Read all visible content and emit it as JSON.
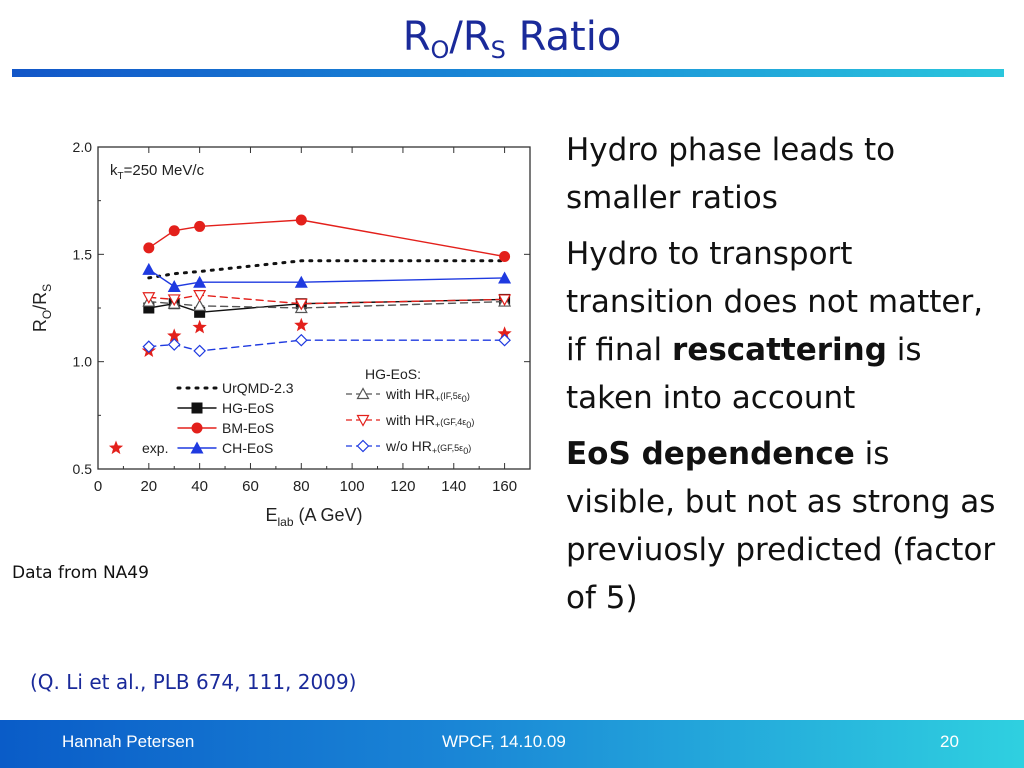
{
  "slide": {
    "title_main": "R",
    "title_sub1": "O",
    "title_slash": "/R",
    "title_sub2": "S",
    "title_tail": " Ratio",
    "bullets": [
      {
        "parts": [
          {
            "text": "Hydro phase leads to smaller ratios",
            "bold": false
          }
        ]
      },
      {
        "parts": [
          {
            "text": "Hydro to transport transition does not matter, if final ",
            "bold": false
          },
          {
            "text": "rescattering",
            "bold": true
          },
          {
            "text": " is taken into account",
            "bold": false
          }
        ]
      },
      {
        "parts": [
          {
            "text": "EoS dependence",
            "bold": true
          },
          {
            "text": " is visible, but not as strong as previuosly predicted (factor of 5)",
            "bold": false
          }
        ]
      }
    ],
    "note": "Data from NA49",
    "reference": "(Q. Li et al., PLB 674, 111, 2009)"
  },
  "footer": {
    "author": "Hannah Petersen",
    "event": "WPCF, 14.10.09",
    "page": "20"
  },
  "chart_data": {
    "type": "line",
    "xlabel": "E",
    "xlabel_sub": "lab",
    "xlabel_tail": " (A GeV)",
    "ylabel": "R",
    "ylabel_sub1": "O",
    "ylabel_mid": "/R",
    "ylabel_sub2": "S",
    "annotation": "k",
    "annotation_sub": "T",
    "annotation_tail": "=250 MeV/c",
    "xlim": [
      0,
      170
    ],
    "ylim": [
      0.5,
      2.0
    ],
    "xticks": [
      "0",
      "20",
      "40",
      "60",
      "80",
      "100",
      "120",
      "140",
      "160"
    ],
    "yticks": [
      "0.5",
      "1.0",
      "1.5",
      "2.0"
    ],
    "legend_heading": "HG-EoS:",
    "series": [
      {
        "name": "UrQMD-2.3",
        "color": "#111111",
        "dash": "dot",
        "marker": "none",
        "x": [
          20,
          30,
          40,
          80,
          160
        ],
        "y": [
          1.39,
          1.41,
          1.42,
          1.47,
          1.47
        ]
      },
      {
        "name": "HG-EoS",
        "color": "#111111",
        "dash": "solid",
        "marker": "square",
        "x": [
          20,
          30,
          40,
          80,
          160
        ],
        "y": [
          1.25,
          1.27,
          1.23,
          1.27,
          1.29
        ]
      },
      {
        "name": "BM-EoS",
        "color": "#e3201b",
        "dash": "solid",
        "marker": "circle",
        "x": [
          20,
          30,
          40,
          80,
          160
        ],
        "y": [
          1.53,
          1.61,
          1.63,
          1.66,
          1.49
        ]
      },
      {
        "name": "CH-EoS",
        "color": "#1f3ae0",
        "dash": "solid",
        "marker": "triangle-up",
        "x": [
          20,
          30,
          40,
          80,
          160
        ],
        "y": [
          1.43,
          1.35,
          1.37,
          1.37,
          1.39
        ]
      },
      {
        "name": "exp.",
        "color": "#e3201b",
        "dash": "none",
        "marker": "star",
        "x": [
          20,
          30,
          40,
          80,
          160
        ],
        "y": [
          1.05,
          1.12,
          1.16,
          1.17,
          1.13
        ]
      },
      {
        "name": "with HR",
        "name_sub": "+",
        "name_tail": "(IF,5ε",
        "name_sub2": "0",
        "name_end": ")",
        "color": "#555555",
        "dash": "dash",
        "marker": "triangle-up-open",
        "x": [
          20,
          30,
          40,
          80,
          160
        ],
        "y": [
          1.28,
          1.27,
          1.26,
          1.25,
          1.28
        ]
      },
      {
        "name": "with HR",
        "name_sub": "+",
        "name_tail": "(GF,4ε",
        "name_sub2": "0",
        "name_end": ")",
        "color": "#e3201b",
        "dash": "dash",
        "marker": "triangle-down-open",
        "x": [
          20,
          30,
          40,
          80,
          160
        ],
        "y": [
          1.3,
          1.29,
          1.31,
          1.27,
          1.29
        ]
      },
      {
        "name": "w/o HR",
        "name_sub": "+",
        "name_tail": "(GF,5ε",
        "name_sub2": "0",
        "name_end": ")",
        "color": "#1f3ae0",
        "dash": "dash",
        "marker": "diamond-open",
        "x": [
          20,
          30,
          40,
          80,
          160
        ],
        "y": [
          1.07,
          1.08,
          1.05,
          1.1,
          1.1
        ]
      }
    ],
    "legend_placement": "bottom, two columns"
  }
}
